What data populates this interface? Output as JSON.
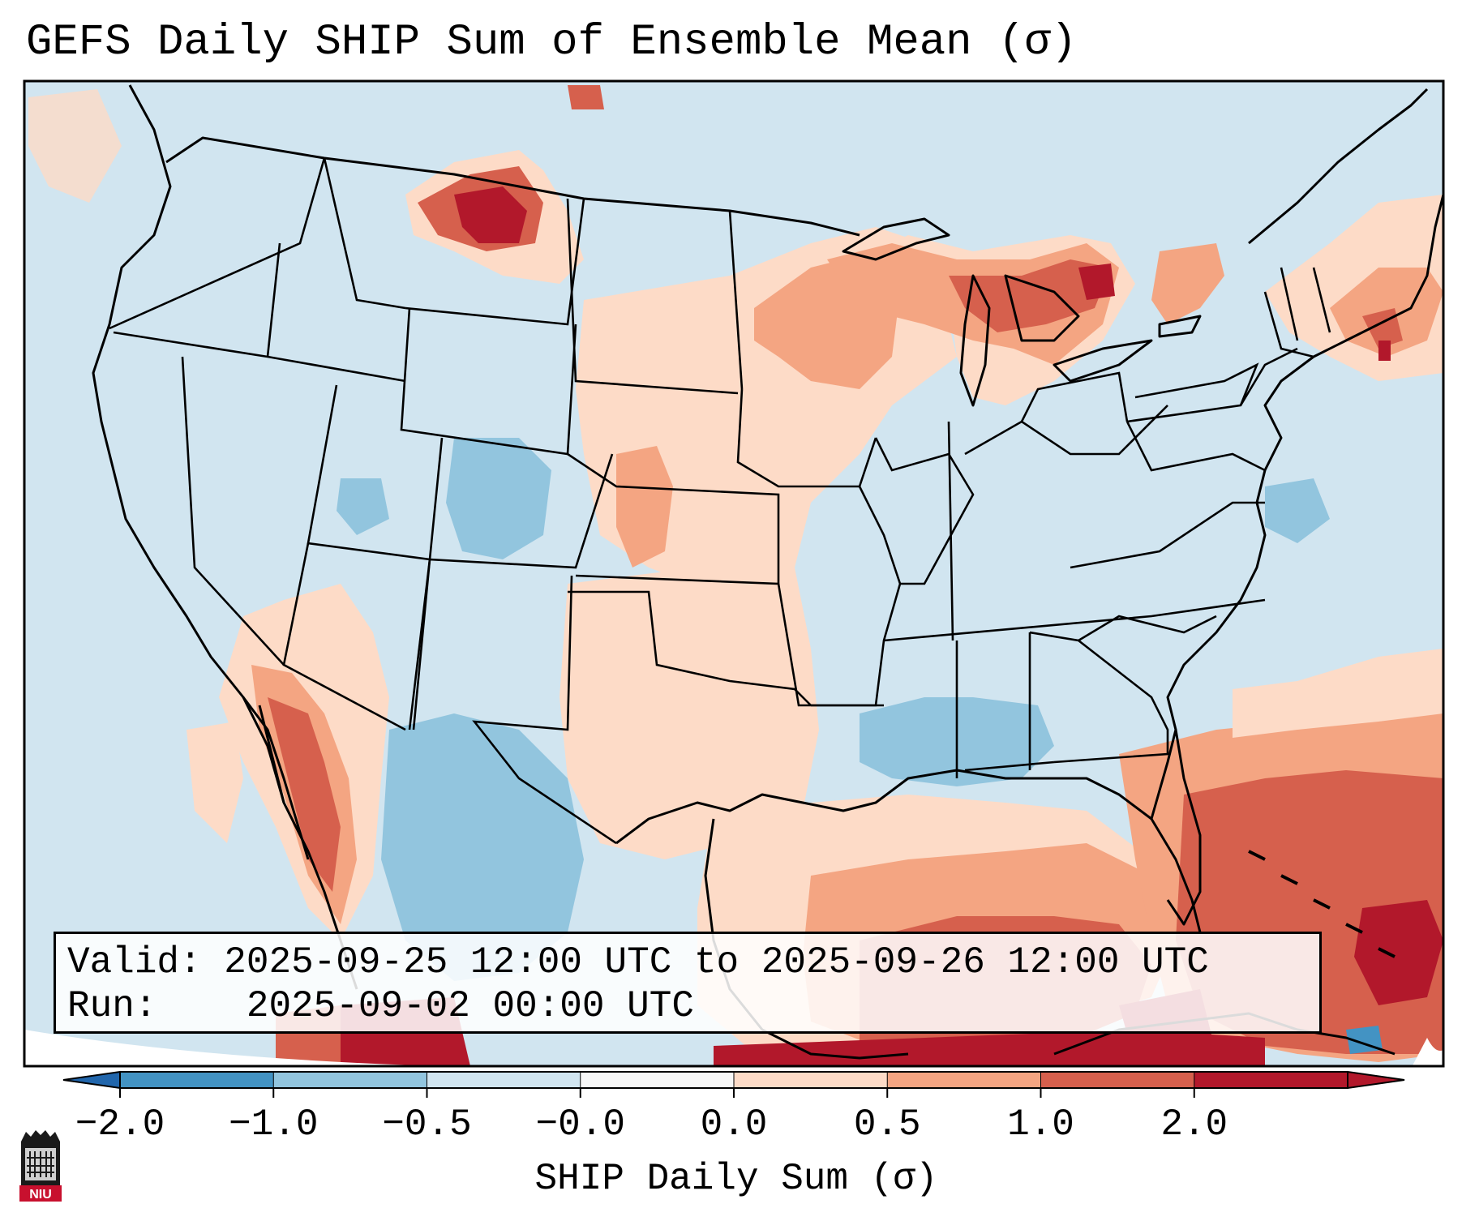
{
  "title": "GEFS Daily SHIP Sum of Ensemble Mean (σ)",
  "info": {
    "valid_label": "Valid:",
    "valid_value": "2025-09-25 12:00 UTC to 2025-09-26 12:00 UTC",
    "run_label": "Run:",
    "run_value": "2025-09-02 00:00 UTC"
  },
  "colorbar": {
    "label": "SHIP Daily Sum (σ)",
    "ticks": [
      "−2.0",
      "−1.0",
      "−0.5",
      "−0.0",
      "0.0",
      "0.5",
      "1.0",
      "2.0"
    ],
    "colors": [
      "#4393c3",
      "#92c5de",
      "#d1e5f0",
      "#f7f7f7",
      "#fddbc7",
      "#f4a582",
      "#d6604d",
      "#b2182b"
    ],
    "under_color": "#2166ac",
    "over_color": "#b2182b"
  },
  "logo": {
    "text": "NIU",
    "color": "#c8102e"
  }
}
